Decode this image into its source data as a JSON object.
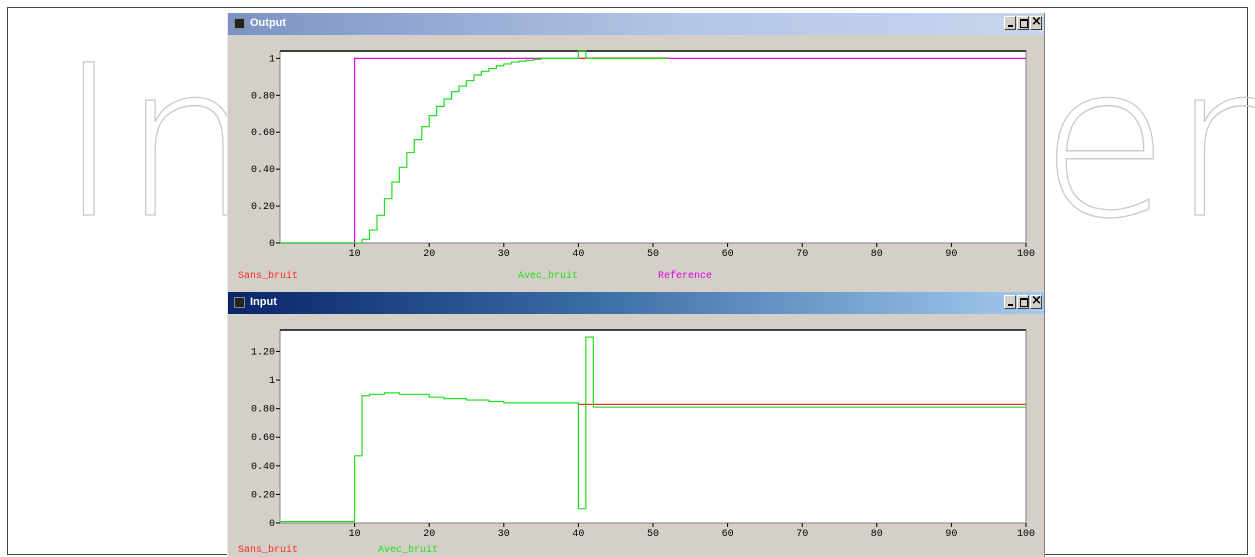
{
  "watermark": {
    "text_left": "In",
    "text_right": "en"
  },
  "windows": [
    {
      "title": "Output",
      "active": false,
      "chart_data": {
        "type": "line",
        "xlim": [
          0,
          100
        ],
        "ylim": [
          0,
          1.04
        ],
        "xticks": [
          10,
          20,
          30,
          40,
          50,
          60,
          70,
          80,
          90,
          100
        ],
        "yticks": [
          0,
          0.2,
          0.4,
          0.6,
          0.8,
          1
        ],
        "ytick_labels": [
          "0",
          "0.20",
          "0.40",
          "0.60",
          "0.80",
          "1"
        ],
        "legend": [
          "Sans_bruit",
          "Avec_bruit",
          "Reference"
        ],
        "series": [
          {
            "name": "Reference",
            "color": "#e000e0",
            "x": [
              0,
              10,
              10,
              100
            ],
            "y": [
              0,
              0,
              1,
              1
            ]
          },
          {
            "name": "Sans_bruit",
            "color": "#ff2a2a",
            "x": [
              40,
              42,
              50,
              52,
              52
            ],
            "y": [
              1,
              1.002,
              1.002,
              1,
              1
            ]
          },
          {
            "name": "Avec_bruit",
            "color": "#22dd22",
            "x": [
              0,
              10,
              11,
              12,
              13,
              14,
              15,
              16,
              17,
              18,
              19,
              20,
              21,
              22,
              23,
              24,
              25,
              26,
              27,
              28,
              29,
              30,
              31,
              32,
              33,
              34,
              35,
              36,
              37,
              38,
              39,
              40,
              41,
              42,
              48,
              50,
              52
            ],
            "y": [
              0,
              0,
              0.02,
              0.07,
              0.15,
              0.24,
              0.33,
              0.41,
              0.49,
              0.56,
              0.63,
              0.69,
              0.74,
              0.78,
              0.82,
              0.85,
              0.88,
              0.91,
              0.93,
              0.945,
              0.96,
              0.97,
              0.98,
              0.985,
              0.99,
              0.995,
              1,
              1,
              1,
              1,
              1,
              1.04,
              1,
              1,
              1,
              1,
              1
            ]
          }
        ]
      }
    },
    {
      "title": "Input",
      "active": true,
      "chart_data": {
        "type": "line",
        "xlim": [
          0,
          100
        ],
        "ylim": [
          0,
          1.35
        ],
        "xticks": [
          10,
          20,
          30,
          40,
          50,
          60,
          70,
          80,
          90,
          100
        ],
        "yticks": [
          0,
          0.2,
          0.4,
          0.6,
          0.8,
          1,
          1.2
        ],
        "ytick_labels": [
          "0",
          "0.20",
          "0.40",
          "0.60",
          "0.80",
          "1",
          "1.20"
        ],
        "legend": [
          "Sans_bruit",
          "Avec_bruit"
        ],
        "series": [
          {
            "name": "Sans_bruit",
            "color": "#ff2a2a",
            "x": [
              40,
              100
            ],
            "y": [
              0.83,
              0.83
            ]
          },
          {
            "name": "Avec_bruit",
            "color": "#22dd22",
            "x": [
              0,
              10,
              10,
              11,
              11,
              12,
              14,
              16,
              18,
              20,
              22,
              25,
              28,
              30,
              35,
              39,
              40,
              40,
              41,
              41,
              42,
              42,
              100
            ],
            "y": [
              0.01,
              0.01,
              0.47,
              0.47,
              0.89,
              0.9,
              0.91,
              0.9,
              0.9,
              0.88,
              0.87,
              0.86,
              0.85,
              0.84,
              0.84,
              0.84,
              0.84,
              0.1,
              0.1,
              1.3,
              1.3,
              0.81,
              0.81
            ]
          }
        ]
      }
    }
  ]
}
